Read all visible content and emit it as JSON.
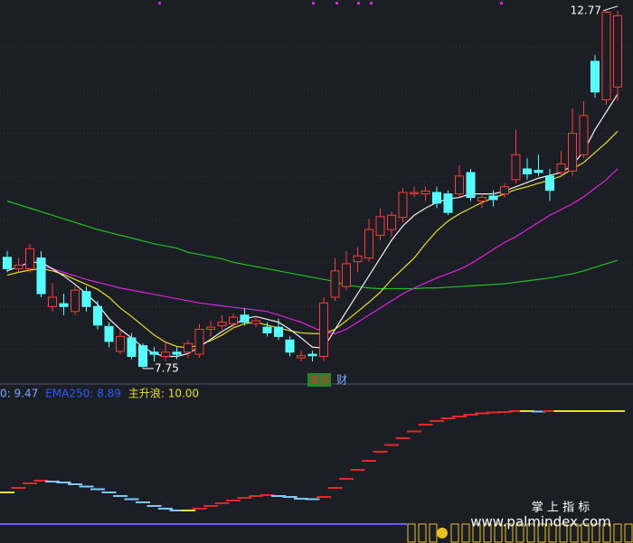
{
  "chart_data": [
    {
      "type": "candlestick",
      "ylim": [
        7.66,
        12.92
      ],
      "grid": true,
      "up_color": "#ff3b3b",
      "down_color": "#54ffff",
      "open": [
        9.31,
        9.15,
        9.15,
        9.3,
        8.62,
        8.66,
        8.55,
        8.83,
        8.62,
        8.34,
        7.99,
        8.18,
        8.07,
        7.98,
        7.92,
        7.98,
        7.98,
        7.95,
        8.3,
        8.35,
        8.38,
        8.5,
        8.38,
        8.33,
        8.33,
        8.15,
        7.9,
        7.95,
        7.92,
        8.75,
        8.9,
        9.25,
        9.3,
        9.62,
        9.7,
        9.87,
        10.2,
        10.2,
        10.22,
        10.2,
        10.2,
        10.5,
        10.1,
        10.17,
        10.2,
        10.4,
        10.55,
        10.53,
        10.45,
        10.5,
        10.52,
        10.75,
        12.06,
        11.52,
        11.7
      ],
      "high": [
        9.4,
        9.3,
        9.5,
        9.4,
        8.95,
        8.8,
        8.9,
        8.9,
        8.7,
        8.4,
        8.3,
        8.25,
        8.1,
        8.05,
        8.12,
        8.05,
        8.15,
        8.38,
        8.42,
        8.5,
        8.52,
        8.6,
        8.48,
        8.4,
        8.45,
        8.2,
        8.0,
        8.0,
        8.75,
        9.3,
        9.4,
        9.45,
        9.85,
        10.0,
        9.95,
        10.28,
        10.3,
        10.3,
        10.3,
        10.25,
        10.6,
        10.55,
        10.2,
        10.25,
        10.35,
        11.1,
        10.7,
        10.75,
        10.55,
        10.8,
        11.4,
        11.5,
        12.15,
        12.77,
        12.77
      ],
      "low": [
        9.1,
        9.1,
        9.1,
        8.75,
        8.55,
        8.5,
        8.5,
        8.55,
        8.3,
        8.05,
        7.95,
        7.88,
        7.75,
        7.85,
        7.85,
        7.88,
        7.9,
        7.9,
        8.2,
        8.3,
        8.3,
        8.35,
        8.33,
        8.2,
        8.15,
        7.92,
        7.85,
        7.85,
        7.85,
        8.7,
        8.85,
        9.1,
        9.25,
        9.55,
        9.6,
        9.8,
        10.15,
        10.1,
        10.0,
        9.9,
        10.15,
        10.1,
        10.0,
        10.02,
        10.15,
        10.35,
        10.4,
        10.45,
        10.1,
        10.45,
        10.45,
        10.7,
        11.55,
        11.45,
        11.5
      ],
      "close": [
        9.15,
        9.2,
        9.43,
        8.8,
        8.75,
        8.62,
        8.85,
        8.62,
        8.36,
        8.13,
        8.2,
        7.92,
        7.78,
        7.95,
        7.98,
        7.95,
        8.1,
        8.3,
        8.33,
        8.4,
        8.47,
        8.4,
        8.42,
        8.25,
        8.2,
        7.98,
        7.93,
        7.93,
        8.67,
        9.12,
        9.22,
        9.33,
        9.7,
        9.88,
        9.9,
        10.22,
        10.22,
        10.24,
        10.07,
        9.94,
        10.45,
        10.15,
        10.15,
        10.12,
        10.3,
        10.75,
        10.48,
        10.5,
        10.25,
        10.62,
        11.05,
        11.3,
        11.63,
        12.75,
        12.7
      ],
      "series": [
        {
          "color": "#1fc21f",
          "values": [
            10.1,
            10.05,
            10.0,
            9.95,
            9.9,
            9.85,
            9.8,
            9.75,
            9.7,
            9.66,
            9.62,
            9.58,
            9.54,
            9.5,
            9.47,
            9.44,
            9.38,
            9.35,
            9.32,
            9.29,
            9.24,
            9.21,
            9.18,
            9.15,
            9.12,
            9.09,
            9.06,
            9.03,
            9.0,
            8.97,
            8.92,
            8.9,
            8.88,
            8.87,
            8.87,
            8.87,
            8.87,
            8.88,
            8.88,
            8.89,
            8.9,
            8.91,
            8.92,
            8.93,
            8.94,
            8.96,
            8.98,
            9.0,
            9.02,
            9.05,
            9.08,
            9.12,
            9.17,
            9.22,
            9.27
          ]
        },
        {
          "color": "#e020e0",
          "values": [
            null,
            null,
            null,
            9.18,
            9.15,
            9.1,
            9.05,
            9.0,
            8.96,
            8.92,
            8.88,
            8.85,
            8.82,
            8.79,
            8.76,
            8.73,
            8.7,
            8.67,
            8.65,
            8.63,
            8.61,
            8.59,
            8.57,
            8.55,
            8.5,
            8.45,
            8.4,
            8.33,
            8.26,
            8.24,
            8.3,
            8.4,
            8.5,
            8.6,
            8.7,
            8.8,
            8.88,
            8.95,
            9.02,
            9.08,
            9.14,
            9.22,
            9.32,
            9.42,
            9.52,
            9.6,
            9.7,
            9.8,
            9.9,
            9.98,
            10.06,
            10.16,
            10.28,
            10.4,
            10.55
          ]
        },
        {
          "color": "#e8e020",
          "values": [
            9.06,
            9.1,
            9.13,
            9.15,
            9.12,
            9.07,
            9.0,
            8.93,
            8.86,
            8.75,
            8.6,
            8.48,
            8.35,
            8.22,
            8.12,
            8.06,
            8.04,
            8.08,
            8.14,
            8.22,
            8.32,
            8.38,
            8.4,
            8.36,
            8.32,
            8.28,
            8.25,
            8.24,
            8.24,
            8.3,
            8.42,
            8.55,
            8.68,
            8.82,
            9.0,
            9.15,
            9.3,
            9.5,
            9.68,
            9.82,
            9.92,
            10.0,
            10.08,
            10.14,
            10.2,
            10.26,
            10.3,
            10.35,
            10.39,
            10.45,
            10.55,
            10.64,
            10.78,
            10.92,
            11.08
          ]
        },
        {
          "color": "#f0f0f0",
          "values": [
            9.12,
            9.18,
            9.24,
            9.24,
            9.15,
            9.05,
            8.93,
            8.8,
            8.65,
            8.45,
            8.3,
            8.18,
            8.05,
            7.96,
            7.92,
            7.92,
            7.96,
            8.05,
            8.16,
            8.27,
            8.36,
            8.45,
            8.48,
            8.44,
            8.4,
            8.3,
            8.18,
            8.05,
            8.04,
            8.3,
            8.55,
            8.8,
            9.05,
            9.3,
            9.55,
            9.75,
            9.9,
            10.0,
            10.08,
            10.13,
            10.15,
            10.2,
            10.2,
            10.2,
            10.24,
            10.3,
            10.36,
            10.42,
            10.46,
            10.5,
            10.6,
            10.8,
            11.1,
            11.35,
            11.6
          ]
        }
      ],
      "annotations": [
        {
          "index": 54,
          "value": 12.77
        },
        {
          "index": 12,
          "value": 7.75
        }
      ],
      "signals": [
        {
          "index": 28,
          "text": "减涨",
          "color": "#e03030",
          "box": "#1a8a2a"
        },
        {
          "index": 30,
          "text": "财",
          "color": "#7aa8ff"
        }
      ]
    },
    {
      "type": "step",
      "ylim": [
        7.5,
        10.5
      ],
      "up_color": "#e02828",
      "down_color": "#7cc8ff",
      "flat_color": "#e8e020",
      "legend": [
        {
          "text": "0: 9.47",
          "color": "#7aa8ff"
        },
        {
          "text": "EMA250: 8.89",
          "color": "#2a5cff"
        },
        {
          "text": "主升浪: 10.00",
          "color": "#e8e020"
        }
      ],
      "values": [
        8.2,
        8.3,
        8.4,
        8.46,
        8.44,
        8.42,
        8.38,
        8.33,
        8.27,
        8.2,
        8.12,
        8.05,
        7.98,
        7.9,
        7.84,
        7.8,
        7.8,
        7.84,
        7.9,
        7.96,
        8.02,
        8.08,
        8.12,
        8.14,
        8.12,
        8.1,
        8.06,
        8.05,
        8.1,
        8.3,
        8.5,
        8.7,
        8.9,
        9.1,
        9.25,
        9.4,
        9.55,
        9.7,
        9.78,
        9.84,
        9.88,
        9.92,
        9.95,
        9.97,
        9.98,
        10.0,
        10.0,
        9.99,
        10.0,
        10.0,
        10.0,
        10.0,
        10.0,
        10.0,
        10.0
      ]
    }
  ],
  "watermark": {
    "title": "掌 上 指 标",
    "url": "www.palmindex.com"
  }
}
